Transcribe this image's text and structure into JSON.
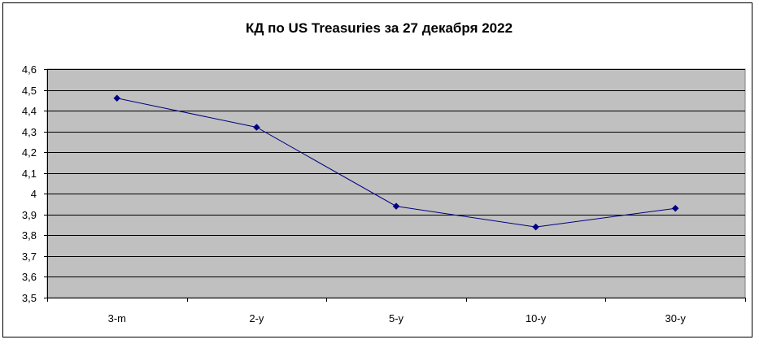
{
  "chart_data": {
    "type": "line",
    "title": "КД по US Treasuries за 27 декабря 2022",
    "xlabel": "",
    "ylabel": "",
    "categories": [
      "3-m",
      "2-y",
      "5-y",
      "10-y",
      "30-y"
    ],
    "series": [
      {
        "values": [
          4.46,
          4.32,
          3.94,
          3.84,
          3.93
        ]
      }
    ],
    "ylim": [
      3.5,
      4.6
    ],
    "yticks": [
      "3,5",
      "3,6",
      "3,7",
      "3,8",
      "3,9",
      "4",
      "4,1",
      "4,2",
      "4,3",
      "4,4",
      "4,5",
      "4,6"
    ],
    "grid": true,
    "legend": "none",
    "colors": {
      "plot_background": "#c0c0c0",
      "series_line": "#000080",
      "marker": "#000080",
      "grid": "#000000"
    }
  }
}
